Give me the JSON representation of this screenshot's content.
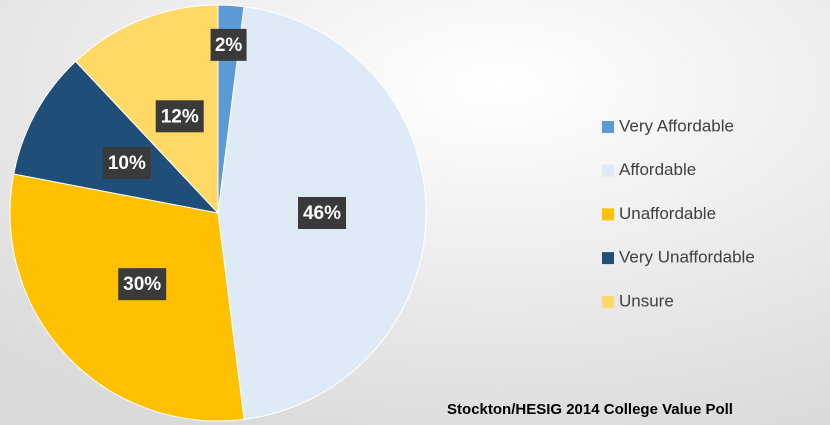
{
  "chart_data": {
    "type": "pie",
    "title": "Stockton/HESIG 2014 College Value Poll",
    "categories": [
      "Very Affordable",
      "Affordable",
      "Unaffordable",
      "Very Unaffordable",
      "Unsure"
    ],
    "values": [
      2,
      46,
      30,
      10,
      12
    ],
    "value_labels": [
      "2%",
      "46%",
      "30%",
      "10%",
      "12%"
    ],
    "colors": [
      "#5b9bd5",
      "#deebf7",
      "#ffc000",
      "#1f4e79",
      "#ffd966"
    ],
    "legend": "right"
  }
}
